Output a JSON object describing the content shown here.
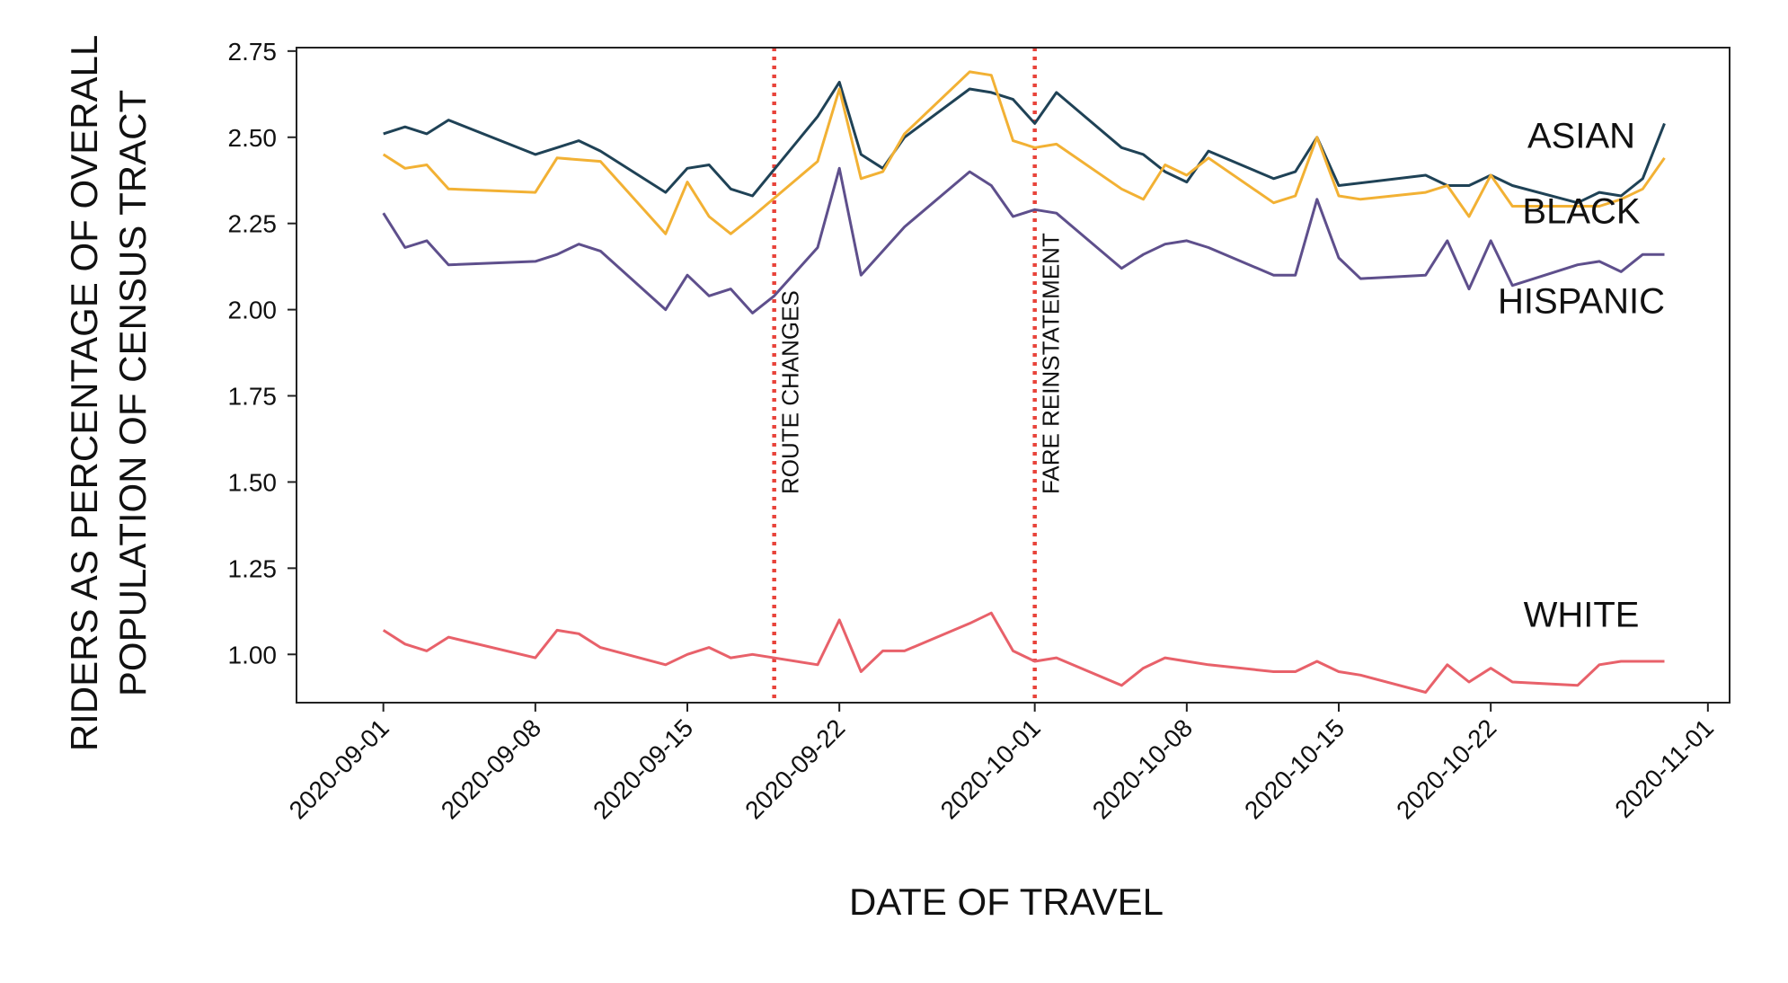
{
  "chart_data": {
    "type": "line",
    "title": "",
    "xlabel": "DATE OF TRAVEL",
    "ylabel_lines": [
      "RIDERS AS PERCENTAGE OF OVERALL",
      "POPULATION OF CENSUS TRACT"
    ],
    "xlim": [
      "2020-08-28",
      "2020-11-02"
    ],
    "ylim": [
      0.86,
      2.76
    ],
    "y_ticks": [
      "2.75",
      "2.50",
      "2.25",
      "2.00",
      "1.75",
      "1.50",
      "1.25",
      "1.00"
    ],
    "x_ticks": [
      "2020-09-01",
      "2020-09-08",
      "2020-09-15",
      "2020-09-22",
      "2020-10-01",
      "2020-10-08",
      "2020-10-15",
      "2020-10-22",
      "2020-11-01"
    ],
    "grid": false,
    "legend": "labels placed at right of each series",
    "annotations": [
      {
        "label": "ROUTE CHANGES",
        "date": "2020-09-19",
        "color": "#e8433a"
      },
      {
        "label": "FARE REINSTATEMENT",
        "date": "2020-10-01",
        "color": "#e8433a"
      }
    ],
    "series": [
      {
        "name": "ASIAN",
        "color": "#1f4256",
        "label_y": 2.47,
        "points": [
          [
            "2020-09-01",
            2.51
          ],
          [
            "2020-09-02",
            2.53
          ],
          [
            "2020-09-03",
            2.51
          ],
          [
            "2020-09-04",
            2.55
          ],
          [
            "2020-09-08",
            2.45
          ],
          [
            "2020-09-09",
            2.47
          ],
          [
            "2020-09-10",
            2.49
          ],
          [
            "2020-09-11",
            2.46
          ],
          [
            "2020-09-14",
            2.34
          ],
          [
            "2020-09-15",
            2.41
          ],
          [
            "2020-09-16",
            2.42
          ],
          [
            "2020-09-17",
            2.35
          ],
          [
            "2020-09-18",
            2.33
          ],
          [
            "2020-09-21",
            2.56
          ],
          [
            "2020-09-22",
            2.66
          ],
          [
            "2020-09-23",
            2.45
          ],
          [
            "2020-09-24",
            2.41
          ],
          [
            "2020-09-25",
            2.5
          ],
          [
            "2020-09-28",
            2.64
          ],
          [
            "2020-09-29",
            2.63
          ],
          [
            "2020-09-30",
            2.61
          ],
          [
            "2020-10-01",
            2.54
          ],
          [
            "2020-10-02",
            2.63
          ],
          [
            "2020-10-05",
            2.47
          ],
          [
            "2020-10-06",
            2.45
          ],
          [
            "2020-10-07",
            2.4
          ],
          [
            "2020-10-08",
            2.37
          ],
          [
            "2020-10-09",
            2.46
          ],
          [
            "2020-10-12",
            2.38
          ],
          [
            "2020-10-13",
            2.4
          ],
          [
            "2020-10-14",
            2.5
          ],
          [
            "2020-10-15",
            2.36
          ],
          [
            "2020-10-19",
            2.39
          ],
          [
            "2020-10-20",
            2.36
          ],
          [
            "2020-10-21",
            2.36
          ],
          [
            "2020-10-22",
            2.39
          ],
          [
            "2020-10-23",
            2.36
          ],
          [
            "2020-10-26",
            2.31
          ],
          [
            "2020-10-27",
            2.34
          ],
          [
            "2020-10-28",
            2.33
          ],
          [
            "2020-10-29",
            2.38
          ],
          [
            "2020-10-30",
            2.54
          ]
        ]
      },
      {
        "name": "BLACK",
        "color": "#f2b134",
        "label_y": 2.25,
        "points": [
          [
            "2020-09-01",
            2.45
          ],
          [
            "2020-09-02",
            2.41
          ],
          [
            "2020-09-03",
            2.42
          ],
          [
            "2020-09-04",
            2.35
          ],
          [
            "2020-09-08",
            2.34
          ],
          [
            "2020-09-09",
            2.44
          ],
          [
            "2020-09-11",
            2.43
          ],
          [
            "2020-09-14",
            2.22
          ],
          [
            "2020-09-15",
            2.37
          ],
          [
            "2020-09-16",
            2.27
          ],
          [
            "2020-09-17",
            2.22
          ],
          [
            "2020-09-18",
            2.27
          ],
          [
            "2020-09-21",
            2.43
          ],
          [
            "2020-09-22",
            2.64
          ],
          [
            "2020-09-23",
            2.38
          ],
          [
            "2020-09-24",
            2.4
          ],
          [
            "2020-09-25",
            2.51
          ],
          [
            "2020-09-28",
            2.69
          ],
          [
            "2020-09-29",
            2.68
          ],
          [
            "2020-09-30",
            2.49
          ],
          [
            "2020-10-01",
            2.47
          ],
          [
            "2020-10-02",
            2.48
          ],
          [
            "2020-10-05",
            2.35
          ],
          [
            "2020-10-06",
            2.32
          ],
          [
            "2020-10-07",
            2.42
          ],
          [
            "2020-10-08",
            2.39
          ],
          [
            "2020-10-09",
            2.44
          ],
          [
            "2020-10-12",
            2.31
          ],
          [
            "2020-10-13",
            2.33
          ],
          [
            "2020-10-14",
            2.5
          ],
          [
            "2020-10-15",
            2.33
          ],
          [
            "2020-10-16",
            2.32
          ],
          [
            "2020-10-19",
            2.34
          ],
          [
            "2020-10-20",
            2.36
          ],
          [
            "2020-10-21",
            2.27
          ],
          [
            "2020-10-22",
            2.39
          ],
          [
            "2020-10-23",
            2.3
          ],
          [
            "2020-10-26",
            2.3
          ],
          [
            "2020-10-27",
            2.3
          ],
          [
            "2020-10-28",
            2.32
          ],
          [
            "2020-10-29",
            2.35
          ],
          [
            "2020-10-30",
            2.44
          ]
        ]
      },
      {
        "name": "HISPANIC",
        "color": "#5e4f8c",
        "label_y": 1.99,
        "points": [
          [
            "2020-09-01",
            2.28
          ],
          [
            "2020-09-02",
            2.18
          ],
          [
            "2020-09-03",
            2.2
          ],
          [
            "2020-09-04",
            2.13
          ],
          [
            "2020-09-08",
            2.14
          ],
          [
            "2020-09-09",
            2.16
          ],
          [
            "2020-09-10",
            2.19
          ],
          [
            "2020-09-11",
            2.17
          ],
          [
            "2020-09-14",
            2.0
          ],
          [
            "2020-09-15",
            2.1
          ],
          [
            "2020-09-16",
            2.04
          ],
          [
            "2020-09-17",
            2.06
          ],
          [
            "2020-09-18",
            1.99
          ],
          [
            "2020-09-19",
            2.04
          ],
          [
            "2020-09-21",
            2.18
          ],
          [
            "2020-09-22",
            2.41
          ],
          [
            "2020-09-23",
            2.1
          ],
          [
            "2020-09-24",
            2.17
          ],
          [
            "2020-09-25",
            2.24
          ],
          [
            "2020-09-28",
            2.4
          ],
          [
            "2020-09-29",
            2.36
          ],
          [
            "2020-09-30",
            2.27
          ],
          [
            "2020-10-01",
            2.29
          ],
          [
            "2020-10-02",
            2.28
          ],
          [
            "2020-10-05",
            2.12
          ],
          [
            "2020-10-06",
            2.16
          ],
          [
            "2020-10-07",
            2.19
          ],
          [
            "2020-10-08",
            2.2
          ],
          [
            "2020-10-09",
            2.18
          ],
          [
            "2020-10-12",
            2.1
          ],
          [
            "2020-10-13",
            2.1
          ],
          [
            "2020-10-14",
            2.32
          ],
          [
            "2020-10-15",
            2.15
          ],
          [
            "2020-10-16",
            2.09
          ],
          [
            "2020-10-19",
            2.1
          ],
          [
            "2020-10-20",
            2.2
          ],
          [
            "2020-10-21",
            2.06
          ],
          [
            "2020-10-22",
            2.2
          ],
          [
            "2020-10-23",
            2.07
          ],
          [
            "2020-10-26",
            2.13
          ],
          [
            "2020-10-27",
            2.14
          ],
          [
            "2020-10-28",
            2.11
          ],
          [
            "2020-10-29",
            2.16
          ],
          [
            "2020-10-30",
            2.16
          ]
        ]
      },
      {
        "name": "WHITE",
        "color": "#e8616a",
        "label_y": 1.08,
        "points": [
          [
            "2020-09-01",
            1.07
          ],
          [
            "2020-09-02",
            1.03
          ],
          [
            "2020-09-03",
            1.01
          ],
          [
            "2020-09-04",
            1.05
          ],
          [
            "2020-09-08",
            0.99
          ],
          [
            "2020-09-09",
            1.07
          ],
          [
            "2020-09-10",
            1.06
          ],
          [
            "2020-09-11",
            1.02
          ],
          [
            "2020-09-14",
            0.97
          ],
          [
            "2020-09-15",
            1.0
          ],
          [
            "2020-09-16",
            1.02
          ],
          [
            "2020-09-17",
            0.99
          ],
          [
            "2020-09-18",
            1.0
          ],
          [
            "2020-09-21",
            0.97
          ],
          [
            "2020-09-22",
            1.1
          ],
          [
            "2020-09-23",
            0.95
          ],
          [
            "2020-09-24",
            1.01
          ],
          [
            "2020-09-25",
            1.01
          ],
          [
            "2020-09-28",
            1.09
          ],
          [
            "2020-09-29",
            1.12
          ],
          [
            "2020-09-30",
            1.01
          ],
          [
            "2020-10-01",
            0.98
          ],
          [
            "2020-10-02",
            0.99
          ],
          [
            "2020-10-05",
            0.91
          ],
          [
            "2020-10-06",
            0.96
          ],
          [
            "2020-10-07",
            0.99
          ],
          [
            "2020-10-08",
            0.98
          ],
          [
            "2020-10-09",
            0.97
          ],
          [
            "2020-10-12",
            0.95
          ],
          [
            "2020-10-13",
            0.95
          ],
          [
            "2020-10-14",
            0.98
          ],
          [
            "2020-10-15",
            0.95
          ],
          [
            "2020-10-16",
            0.94
          ],
          [
            "2020-10-19",
            0.89
          ],
          [
            "2020-10-20",
            0.97
          ],
          [
            "2020-10-21",
            0.92
          ],
          [
            "2020-10-22",
            0.96
          ],
          [
            "2020-10-23",
            0.92
          ],
          [
            "2020-10-26",
            0.91
          ],
          [
            "2020-10-27",
            0.97
          ],
          [
            "2020-10-28",
            0.98
          ],
          [
            "2020-10-29",
            0.98
          ],
          [
            "2020-10-30",
            0.98
          ]
        ]
      }
    ]
  }
}
